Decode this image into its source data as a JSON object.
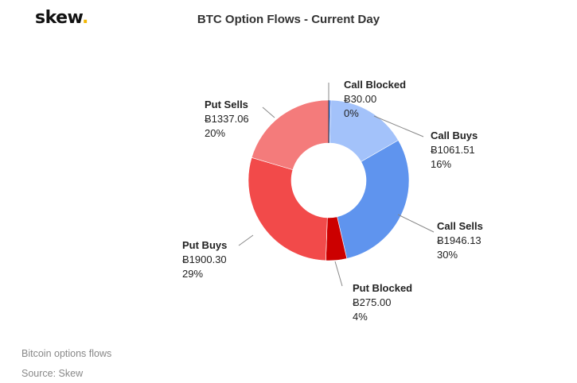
{
  "brand": {
    "name": "skew",
    "dot": "."
  },
  "chart_data": {
    "type": "pie",
    "variant": "donut",
    "title": "BTC Option Flows - Current Day",
    "currency_symbol": "Ƀ",
    "slices": [
      {
        "label": "Call Blocked",
        "value": 30.0,
        "display_value": "Ƀ30.00",
        "percent": "0%",
        "color": "#5b8def"
      },
      {
        "label": "Call Buys",
        "value": 1061.51,
        "display_value": "Ƀ1061.51",
        "percent": "16%",
        "color": "#a3c2fa"
      },
      {
        "label": "Call Sells",
        "value": 1946.13,
        "display_value": "Ƀ1946.13",
        "percent": "30%",
        "color": "#5f94ee"
      },
      {
        "label": "Put Blocked",
        "value": 275.0,
        "display_value": "Ƀ275.00",
        "percent": "4%",
        "color": "#cc0000"
      },
      {
        "label": "Put Buys",
        "value": 1900.3,
        "display_value": "Ƀ1900.30",
        "percent": "29%",
        "color": "#f24a4a"
      },
      {
        "label": "Put Sells",
        "value": 1337.06,
        "display_value": "Ƀ1337.06",
        "percent": "20%",
        "color": "#f47b7b"
      }
    ],
    "legend": "none",
    "data_labels": "outside-with-connectors"
  },
  "footer": {
    "caption": "Bitcoin options flows",
    "source": "Source: Skew"
  }
}
